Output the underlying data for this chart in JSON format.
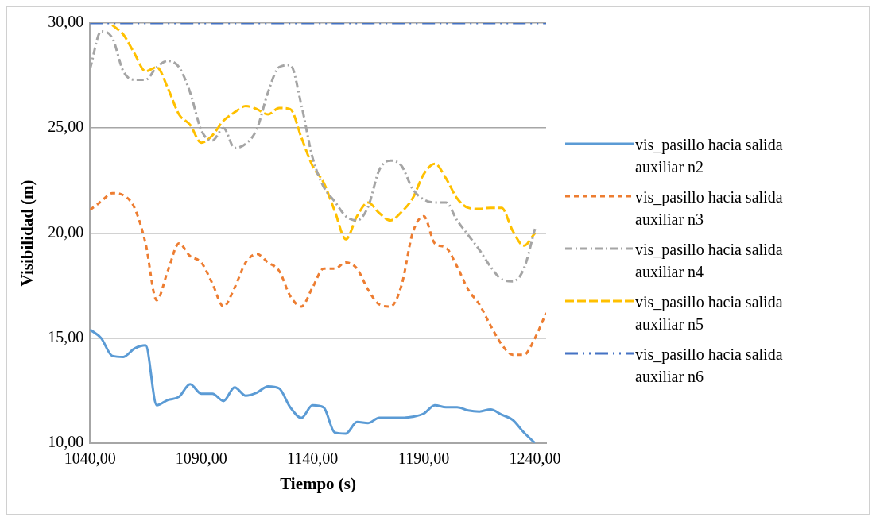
{
  "chart_data": {
    "type": "line",
    "xlabel": "Tiempo (s)",
    "ylabel": "Visibilidad (m)",
    "x": [
      1040,
      1045,
      1050,
      1055,
      1060,
      1065,
      1070,
      1075,
      1080,
      1085,
      1090,
      1095,
      1100,
      1105,
      1110,
      1115,
      1120,
      1125,
      1130,
      1135,
      1140,
      1145,
      1150,
      1155,
      1160,
      1165,
      1170,
      1175,
      1180,
      1185,
      1190,
      1195,
      1200,
      1205,
      1210,
      1215,
      1220,
      1225,
      1230,
      1235,
      1240,
      1245
    ],
    "series": [
      {
        "name": "vis_pasillo hacia salida auxiliar n2",
        "color": "#5b9bd5",
        "line_style": "solid",
        "values": [
          15.4,
          15.0,
          14.15,
          14.1,
          14.5,
          14.65,
          11.8,
          12.05,
          12.2,
          12.8,
          12.35,
          12.35,
          12.0,
          12.65,
          12.25,
          12.4,
          12.7,
          12.6,
          11.7,
          11.2,
          11.8,
          11.7,
          10.5,
          10.45,
          11.0,
          10.95,
          11.2,
          11.2,
          11.2,
          11.25,
          11.4,
          11.8,
          11.7,
          11.7,
          11.55,
          11.5,
          11.6,
          11.35,
          11.1,
          10.5,
          10.0,
          null
        ]
      },
      {
        "name": "vis_pasillo hacia salida auxiliar n3",
        "color": "#ed7d31",
        "line_style": "dotted",
        "values": [
          21.1,
          21.5,
          21.9,
          21.8,
          21.2,
          19.5,
          16.8,
          18.2,
          19.5,
          18.9,
          18.6,
          17.6,
          16.5,
          17.4,
          18.6,
          19.0,
          18.6,
          18.2,
          17.0,
          16.5,
          17.4,
          18.3,
          18.3,
          18.6,
          18.3,
          17.3,
          16.6,
          16.5,
          17.5,
          20.0,
          20.8,
          19.5,
          19.3,
          18.4,
          17.3,
          16.6,
          15.6,
          14.7,
          14.2,
          14.2,
          15.0,
          16.2
        ]
      },
      {
        "name": "vis_pasillo hacia salida auxiliar n4",
        "color": "#a5a5a5",
        "line_style": "dashdot",
        "values": [
          27.8,
          29.6,
          29.3,
          27.7,
          27.3,
          27.3,
          27.9,
          28.2,
          27.9,
          26.7,
          24.9,
          24.4,
          25.0,
          24.05,
          24.25,
          24.95,
          26.7,
          27.9,
          28.0,
          26.1,
          23.6,
          22.2,
          21.5,
          20.8,
          20.6,
          21.25,
          23.0,
          23.45,
          23.2,
          22.1,
          21.6,
          21.45,
          21.45,
          20.6,
          19.9,
          19.2,
          18.4,
          17.8,
          17.7,
          18.3,
          20.2,
          null
        ]
      },
      {
        "name": "vis_pasillo hacia salida auxiliar n5",
        "color": "#ffc000",
        "line_style": "dashed",
        "values": [
          null,
          null,
          29.9,
          29.45,
          28.55,
          27.7,
          27.9,
          26.9,
          25.65,
          25.15,
          24.3,
          24.65,
          25.35,
          25.75,
          26.05,
          25.9,
          25.65,
          25.95,
          25.9,
          24.55,
          23.2,
          22.4,
          21.05,
          19.7,
          20.8,
          21.45,
          20.95,
          20.6,
          21.0,
          21.65,
          22.8,
          23.3,
          22.6,
          21.65,
          21.2,
          21.15,
          21.2,
          21.2,
          20.1,
          19.4,
          20.0,
          null
        ]
      },
      {
        "name": "vis_pasillo hacia salida auxiliar n6",
        "color": "#4472c4",
        "line_style": "dashdotdot",
        "values": [
          30,
          30,
          30,
          30,
          30,
          30,
          30,
          30,
          30,
          30,
          30,
          30,
          30,
          30,
          30,
          30,
          30,
          30,
          30,
          30,
          30,
          30,
          30,
          30,
          30,
          30,
          30,
          30,
          30,
          30,
          30,
          30,
          30,
          30,
          30,
          30,
          30,
          30,
          30,
          30,
          30,
          30
        ]
      }
    ],
    "xlim": [
      1040,
      1245
    ],
    "xticks": [
      {
        "value": 1040,
        "label": "1040,00"
      },
      {
        "value": 1090,
        "label": "1090,00"
      },
      {
        "value": 1140,
        "label": "1140,00"
      },
      {
        "value": 1190,
        "label": "1190,00"
      },
      {
        "value": 1240,
        "label": "1240,00"
      }
    ],
    "ylim": [
      10,
      30
    ],
    "yticks": [
      {
        "value": 10,
        "label": "10,00"
      },
      {
        "value": 15,
        "label": "15,00"
      },
      {
        "value": 20,
        "label": "20,00"
      },
      {
        "value": 25,
        "label": "25,00"
      },
      {
        "value": 30,
        "label": "30,00"
      }
    ],
    "grid": "y",
    "legend": "right",
    "marker": "none"
  }
}
